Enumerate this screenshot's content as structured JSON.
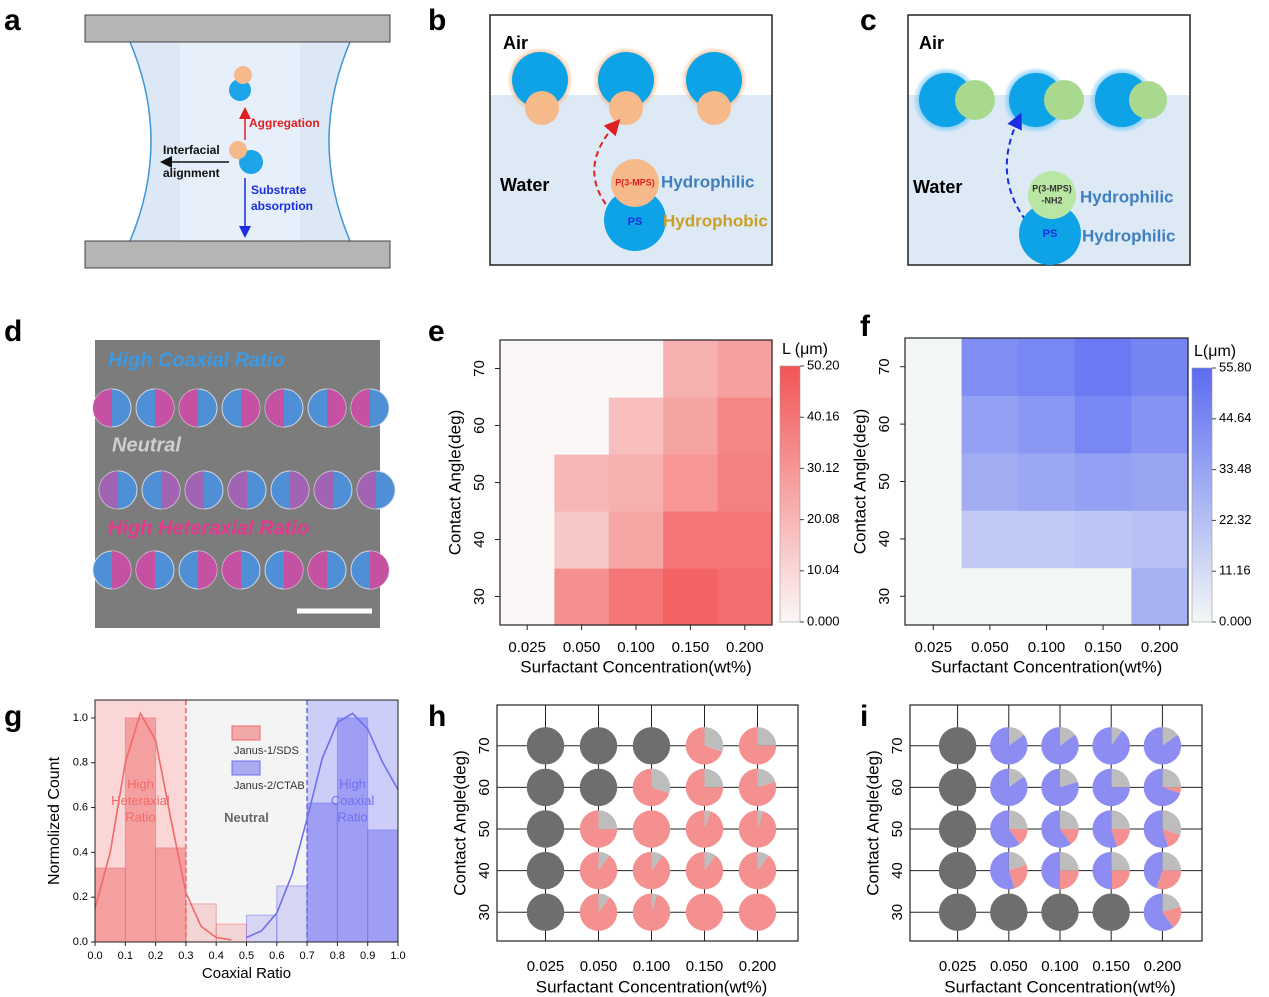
{
  "panels": {
    "labels": [
      "a",
      "b",
      "c",
      "d",
      "e",
      "f",
      "g",
      "h",
      "i"
    ],
    "a": {
      "aggregation": "Aggregation",
      "interfacial": [
        "Interfacial",
        "alignment"
      ],
      "substrate": [
        "Substrate",
        "absorption"
      ]
    },
    "b": {
      "air": "Air",
      "water": "Water",
      "shell": "P(3-MPS)",
      "core": "PS",
      "shell_label": "Hydrophilic",
      "core_label": "Hydrophobic"
    },
    "c": {
      "air": "Air",
      "water": "Water",
      "shell": [
        "P(3-MPS)",
        "-NH2"
      ],
      "core": "PS",
      "shell_label": "Hydrophilic",
      "core_label": "Hydrophilic"
    },
    "d": {
      "top": "High Coaxial Ratio",
      "middle": "Neutral",
      "bottom": "High Heteraxial Ratio"
    }
  },
  "chart_data": [
    {
      "type": "heatmap",
      "x_label": "Surfactant Concentration(wt%)",
      "y_label": "Contact Angle(deg)",
      "categories": [
        "0.025",
        "0.050",
        "0.100",
        "0.150",
        "0.200"
      ],
      "y_categories": [
        30,
        40,
        50,
        60,
        70
      ],
      "values": [
        [
          0,
          32,
          40,
          46,
          42
        ],
        [
          0,
          15,
          25,
          40,
          40
        ],
        [
          0,
          20,
          22,
          30,
          37
        ],
        [
          0,
          0,
          18,
          26,
          35
        ],
        [
          0,
          0,
          0,
          22,
          27
        ]
      ],
      "colorbar_label": "L (μm)",
      "zlim": [
        0,
        50.2
      ],
      "zticks": [
        {
          "value": 0,
          "label": "0.000"
        },
        10.04,
        20.08,
        30.12,
        40.16,
        {
          "value": 50.2,
          "label": "50.20"
        }
      ],
      "colors": [
        "#fbf7f7",
        "#f25555"
      ]
    },
    {
      "type": "heatmap",
      "x_label": "Surfactant Concentration(wt%)",
      "y_label": "Contact Angle(deg)",
      "categories": [
        "0.025",
        "0.050",
        "0.100",
        "0.150",
        "0.200"
      ],
      "y_categories": [
        30,
        40,
        50,
        60,
        70
      ],
      "values": [
        [
          0,
          0,
          0,
          0,
          28
        ],
        [
          0,
          18,
          18,
          20,
          22
        ],
        [
          0,
          30,
          32,
          35,
          33
        ],
        [
          0,
          35,
          38,
          45,
          40
        ],
        [
          0,
          42,
          45,
          50,
          46
        ]
      ],
      "colorbar_label": "L(μm)",
      "zlim": [
        0,
        55.8
      ],
      "zticks": [
        {
          "value": 0,
          "label": "0.000"
        },
        11.16,
        22.32,
        33.48,
        44.64,
        {
          "value": 55.8,
          "label": "55.80"
        }
      ],
      "colors": [
        "#f2f7f5",
        "#5b6cf2"
      ]
    },
    {
      "type": "histogram",
      "x_label": "Coaxial Ratio",
      "y_label": "Normolized Count",
      "bins": [
        0,
        0.1,
        0.2,
        0.3,
        0.4,
        0.5,
        0.6,
        0.7,
        0.8,
        0.9,
        1
      ],
      "series": [
        {
          "name": "Janus-1/SDS",
          "color": "#f06a6a",
          "values": [
            0.33,
            1.0,
            0.42,
            0.17,
            0.08,
            null,
            null,
            null,
            null,
            null
          ]
        },
        {
          "name": "Janus-2/CTAB",
          "color": "#6f6ff0",
          "values": [
            null,
            null,
            null,
            null,
            null,
            0.12,
            0.25,
            0.62,
            1.0,
            0.5
          ]
        }
      ],
      "fits": [
        {
          "x": [
            0,
            0.05,
            0.1,
            0.15,
            0.2,
            0.25,
            0.3,
            0.35,
            0.4,
            0.45
          ],
          "values": [
            0.15,
            0.4,
            0.8,
            1.02,
            0.9,
            0.55,
            0.22,
            0.07,
            0.02,
            0.01
          ]
        },
        {
          "x": [
            0.5,
            0.55,
            0.6,
            0.65,
            0.7,
            0.75,
            0.8,
            0.85,
            0.9,
            0.95,
            1
          ],
          "values": [
            0.02,
            0.05,
            0.13,
            0.3,
            0.55,
            0.82,
            0.98,
            1.02,
            0.95,
            0.8,
            0.68
          ]
        }
      ],
      "thresholds": [
        0.3,
        0.7
      ],
      "annotations": [
        [
          "High",
          "Heteraxial",
          "Ratio"
        ],
        [
          "Neutral"
        ],
        [
          "High",
          "Coaxial",
          "Ratio"
        ]
      ],
      "xlim": [
        0,
        1
      ],
      "ylim": [
        0,
        1.08
      ],
      "xticks": [
        {
          "value": 0,
          "label": "0.0"
        },
        0.1,
        0.2,
        0.3,
        0.4,
        0.5,
        0.6,
        0.7,
        0.8,
        0.9,
        {
          "value": 1,
          "label": "1.0"
        }
      ],
      "yticks": [
        {
          "value": 0,
          "label": "0.0"
        },
        0.2,
        0.4,
        0.6,
        0.8,
        {
          "value": 1,
          "label": "1.0"
        }
      ]
    },
    {
      "type": "pie_grid",
      "x_label": "Surfactant Concentration(wt%)",
      "y_label": "Contact Angle(deg)",
      "categories": [
        "0.025",
        "0.050",
        "0.100",
        "0.150",
        "0.200"
      ],
      "y_categories": [
        30,
        40,
        50,
        60,
        70
      ],
      "colors": [
        "#f59090",
        "#bdbdbd",
        "#6e6e6e"
      ],
      "values": [
        [
          [
            0,
            0,
            100
          ],
          [
            90,
            10,
            0
          ],
          [
            95,
            5,
            0
          ],
          [
            100,
            0,
            0
          ],
          [
            100,
            0,
            0
          ]
        ],
        [
          [
            0,
            0,
            100
          ],
          [
            90,
            10,
            0
          ],
          [
            90,
            10,
            0
          ],
          [
            90,
            10,
            0
          ],
          [
            90,
            10,
            0
          ]
        ],
        [
          [
            0,
            0,
            100
          ],
          [
            75,
            25,
            0
          ],
          [
            100,
            0,
            0
          ],
          [
            95,
            5,
            0
          ],
          [
            95,
            5,
            0
          ]
        ],
        [
          [
            0,
            0,
            100
          ],
          [
            0,
            0,
            100
          ],
          [
            70,
            30,
            0
          ],
          [
            75,
            25,
            0
          ],
          [
            80,
            20,
            0
          ]
        ],
        [
          [
            0,
            0,
            100
          ],
          [
            0,
            0,
            100
          ],
          [
            0,
            0,
            100
          ],
          [
            70,
            30,
            0
          ],
          [
            75,
            25,
            0
          ]
        ]
      ]
    },
    {
      "type": "pie_grid",
      "x_label": "Surfactant Concentration(wt%)",
      "y_label": "Contact Angle(deg)",
      "categories": [
        "0.025",
        "0.050",
        "0.100",
        "0.150",
        "0.200"
      ],
      "y_categories": [
        30,
        40,
        50,
        60,
        70
      ],
      "colors": [
        "#8c8cf2",
        "#f59090",
        "#bdbdbd",
        "#6e6e6e"
      ],
      "values": [
        [
          [
            0,
            0,
            0,
            100
          ],
          [
            0,
            0,
            0,
            100
          ],
          [
            0,
            0,
            0,
            100
          ],
          [
            0,
            0,
            0,
            100
          ],
          [
            60,
            20,
            20,
            0
          ]
        ],
        [
          [
            0,
            0,
            0,
            100
          ],
          [
            55,
            25,
            20,
            0
          ],
          [
            50,
            25,
            25,
            0
          ],
          [
            50,
            25,
            25,
            0
          ],
          [
            45,
            30,
            25,
            0
          ]
        ],
        [
          [
            0,
            0,
            0,
            100
          ],
          [
            60,
            15,
            25,
            0
          ],
          [
            60,
            15,
            25,
            0
          ],
          [
            55,
            20,
            25,
            0
          ],
          [
            55,
            15,
            30,
            0
          ]
        ],
        [
          [
            0,
            0,
            0,
            100
          ],
          [
            85,
            0,
            15,
            0
          ],
          [
            80,
            0,
            20,
            0
          ],
          [
            75,
            0,
            25,
            0
          ],
          [
            70,
            5,
            25,
            0
          ]
        ],
        [
          [
            0,
            0,
            0,
            100
          ],
          [
            85,
            0,
            15,
            0
          ],
          [
            85,
            0,
            15,
            0
          ],
          [
            90,
            0,
            10,
            0
          ],
          [
            85,
            0,
            15,
            0
          ]
        ]
      ]
    }
  ]
}
